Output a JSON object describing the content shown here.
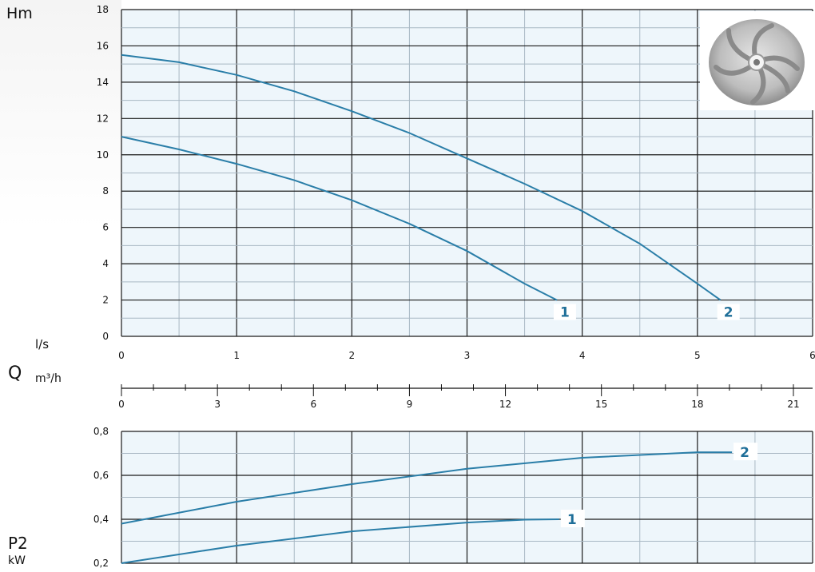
{
  "chart_data": [
    {
      "type": "line",
      "ylabel": "Hm",
      "xlabel": "l/s",
      "xlim": [
        0,
        6
      ],
      "ylim": [
        0,
        18
      ],
      "x_ticks": [
        "0",
        "1",
        "2",
        "3",
        "4",
        "5",
        "6"
      ],
      "y_ticks": [
        "0",
        "2",
        "4",
        "6",
        "8",
        "10",
        "12",
        "14",
        "16",
        "18"
      ],
      "grid": true,
      "series": [
        {
          "name": "1",
          "x": [
            0,
            0.5,
            1,
            1.5,
            2,
            2.5,
            3,
            3.5,
            3.78
          ],
          "y": [
            11.0,
            10.3,
            9.5,
            8.6,
            7.5,
            6.2,
            4.7,
            2.9,
            2.0
          ]
        },
        {
          "name": "2",
          "x": [
            0,
            0.5,
            1,
            1.5,
            2,
            2.5,
            3,
            3.5,
            4,
            4.5,
            5,
            5.2
          ],
          "y": [
            15.5,
            15.1,
            14.4,
            13.5,
            12.4,
            11.2,
            9.8,
            8.4,
            6.9,
            5.1,
            2.9,
            2.0
          ]
        }
      ]
    },
    {
      "type": "axis",
      "label": "Q",
      "unit": "m³/h",
      "xlim": [
        0,
        21.6
      ],
      "x_ticks": [
        "0",
        "3",
        "6",
        "9",
        "12",
        "15",
        "18",
        "21"
      ]
    },
    {
      "type": "line",
      "ylabel": "P2",
      "yunit": "kW",
      "xlim": [
        0,
        6
      ],
      "ylim": [
        0.2,
        0.8
      ],
      "y_ticks": [
        "0,2",
        "0,4",
        "0,6",
        "0,8"
      ],
      "grid": true,
      "series": [
        {
          "name": "1",
          "x": [
            0,
            1,
            2,
            3,
            3.5,
            3.8
          ],
          "y": [
            0.2,
            0.28,
            0.345,
            0.385,
            0.398,
            0.4
          ]
        },
        {
          "name": "2",
          "x": [
            0,
            1,
            2,
            3,
            4,
            5,
            5.3
          ],
          "y": [
            0.38,
            0.48,
            0.56,
            0.63,
            0.68,
            0.705,
            0.705
          ]
        }
      ]
    }
  ],
  "labels": {
    "hm": "Hm",
    "ls": "l/s",
    "q": "Q",
    "m3h": "m³/h",
    "p2": "P2",
    "kw": "kW"
  },
  "colors": {
    "curve": "#2a7ea8",
    "grid_major": "#1a1a1a",
    "grid_minor": "#a9b8c4",
    "plot_bg": "#eef6fb",
    "label": "#1f6f99"
  }
}
